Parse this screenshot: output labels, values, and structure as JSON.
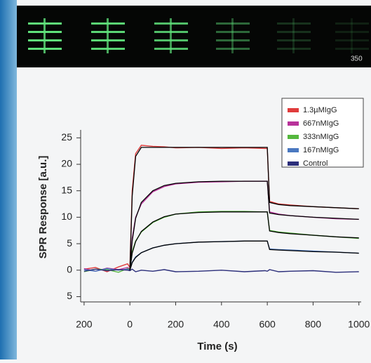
{
  "image": {
    "scale_label": "350"
  },
  "chart_data": {
    "type": "line",
    "x_label": "Time (s)",
    "y_label": "SPR Response [a.u.]",
    "xlim": [
      -215,
      1010
    ],
    "ylim": [
      -6,
      26.5
    ],
    "xticks": [
      {
        "value": -200,
        "label": "200"
      },
      0,
      200,
      400,
      600,
      800,
      1000
    ],
    "yticks": [
      25,
      20,
      15,
      10,
      5,
      0,
      {
        "value": -5,
        "label": "5"
      }
    ],
    "legend": "top-right",
    "x": [
      -200,
      -150,
      -100,
      -50,
      -10,
      0,
      10,
      25,
      50,
      100,
      150,
      200,
      300,
      400,
      500,
      590,
      600,
      610,
      650,
      700,
      800,
      900,
      1000
    ],
    "series": [
      {
        "name": "1.3µMIgG",
        "color": "#e03c3c",
        "values": [
          0.2,
          0.5,
          -0.3,
          0.6,
          1.2,
          0.5,
          15,
          22,
          23.6,
          23.4,
          23.3,
          23.1,
          23.2,
          23.0,
          23.1,
          23.0,
          23.0,
          13,
          12.5,
          12.3,
          12.0,
          11.8,
          11.6
        ]
      },
      {
        "name": "667nMIgG",
        "color": "#b8329a",
        "values": [
          0.3,
          -0.2,
          0.4,
          0.1,
          0.5,
          0.2,
          6,
          10,
          12.5,
          14.8,
          15.8,
          16.3,
          16.6,
          16.7,
          16.8,
          16.8,
          16.8,
          11,
          10.6,
          10.3,
          10.0,
          9.7,
          9.6
        ]
      },
      {
        "name": "333nMIgG",
        "color": "#55b83e",
        "values": [
          -0.3,
          0.2,
          0.1,
          -0.4,
          0.3,
          0.1,
          3.5,
          5.5,
          7.2,
          9.0,
          10.0,
          10.6,
          11.0,
          11.1,
          11.1,
          11.0,
          11.0,
          7.5,
          7.2,
          7.0,
          6.6,
          6.3,
          6.0
        ]
      },
      {
        "name": "167nMIgG",
        "color": "#4a78c0",
        "values": [
          0.1,
          -0.2,
          0.3,
          0.0,
          0.2,
          0.0,
          1.5,
          2.5,
          3.3,
          4.2,
          4.7,
          5.0,
          5.3,
          5.4,
          5.5,
          5.5,
          5.5,
          4.0,
          3.9,
          3.8,
          3.6,
          3.4,
          3.2
        ]
      },
      {
        "name": "Control",
        "color": "#2b2e7a",
        "values": [
          -0.2,
          0.2,
          -0.1,
          0.1,
          0.0,
          -0.1,
          0.2,
          -0.3,
          0.0,
          -0.2,
          0.1,
          -0.3,
          -0.2,
          0.0,
          -0.3,
          -0.1,
          -0.2,
          0.1,
          -0.3,
          -0.2,
          -0.1,
          -0.4,
          -0.3
        ]
      },
      {
        "color": "#000000",
        "values": [
          null,
          null,
          null,
          null,
          null,
          0,
          14,
          21.5,
          23.2,
          23.2,
          23.2,
          23.2,
          23.2,
          23.2,
          23.2,
          23.2,
          23.2,
          12.8,
          12.4,
          12.2,
          12.0,
          11.8,
          11.6
        ]
      },
      {
        "color": "#000000",
        "values": [
          null,
          null,
          null,
          null,
          null,
          0,
          5.5,
          9.8,
          12.8,
          15.0,
          16.0,
          16.4,
          16.7,
          16.8,
          16.8,
          16.8,
          16.8,
          10.8,
          10.5,
          10.3,
          10.0,
          9.8,
          9.6
        ]
      },
      {
        "color": "#000000",
        "values": [
          null,
          null,
          null,
          null,
          null,
          0,
          3.2,
          5.4,
          7.3,
          9.1,
          10.1,
          10.6,
          10.9,
          11.0,
          11.0,
          11.0,
          11.0,
          7.4,
          7.1,
          6.9,
          6.6,
          6.3,
          6.1
        ]
      },
      {
        "color": "#000000",
        "values": [
          null,
          null,
          null,
          null,
          null,
          0,
          1.4,
          2.4,
          3.3,
          4.2,
          4.7,
          5.0,
          5.3,
          5.4,
          5.5,
          5.5,
          5.5,
          3.9,
          3.8,
          3.7,
          3.5,
          3.4,
          3.2
        ]
      }
    ]
  }
}
